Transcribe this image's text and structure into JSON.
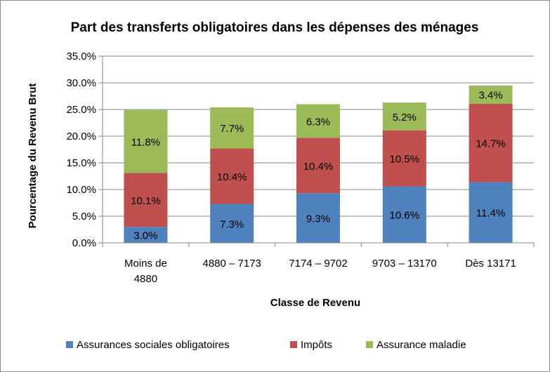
{
  "chart_data": {
    "type": "bar",
    "stacked": true,
    "title": "Part des transferts obligatoires dans les dépenses des ménages",
    "xlabel": "Classe de Revenu",
    "ylabel": "Pourcentage du Revenu Brut",
    "ylim": [
      0,
      35
    ],
    "yticks": [
      "0.0%",
      "5.0%",
      "10.0%",
      "15.0%",
      "20.0%",
      "25.0%",
      "30.0%",
      "35.0%"
    ],
    "categories": [
      [
        "Moins de",
        "4880"
      ],
      [
        "4880 – 7173"
      ],
      [
        "7174  – 9702"
      ],
      [
        "9703 – 13170"
      ],
      [
        "Dès 13171"
      ]
    ],
    "series": [
      {
        "name": "Assurances sociales obligatoires",
        "color": "#4f81bd",
        "values": [
          3.0,
          7.3,
          9.3,
          10.6,
          11.4
        ],
        "labels": [
          "3.0%",
          "7.3%",
          "9.3%",
          "10.6%",
          "11.4%"
        ]
      },
      {
        "name": "Impôts",
        "color": "#c0504d",
        "values": [
          10.1,
          10.4,
          10.4,
          10.5,
          14.7
        ],
        "labels": [
          "10.1%",
          "10.4%",
          "10.4%",
          "10.5%",
          "14.7%"
        ]
      },
      {
        "name": "Assurance maladie",
        "color": "#9bbb59",
        "values": [
          11.8,
          7.7,
          6.3,
          5.2,
          3.4
        ],
        "labels": [
          "11.8%",
          "7.7%",
          "6.3%",
          "5.2%",
          "3.4%"
        ]
      }
    ],
    "legend_position": "bottom",
    "grid": true
  }
}
